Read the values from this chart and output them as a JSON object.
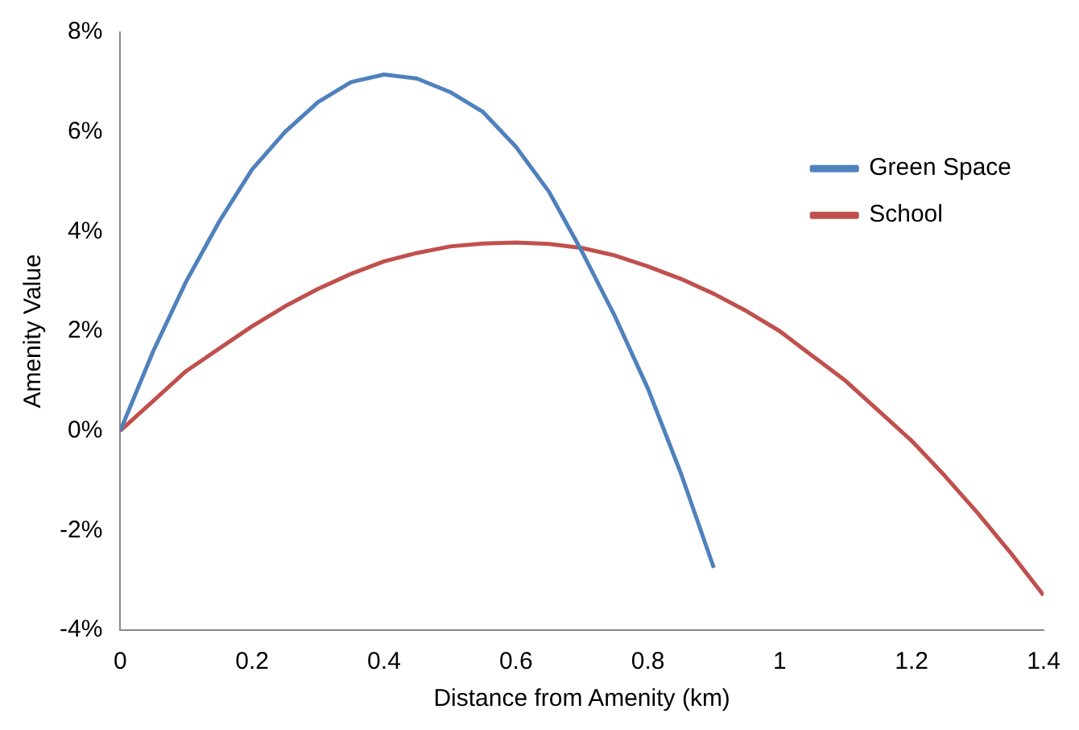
{
  "chart_data": {
    "type": "line",
    "xlabel": "Distance from Amenity (km)",
    "ylabel": "Amenity Value",
    "xlim": [
      0,
      1.4
    ],
    "xticks": [
      0,
      0.2,
      0.4,
      0.6,
      0.8,
      1,
      1.2,
      1.4
    ],
    "ylim": [
      -4,
      8
    ],
    "yticks": [
      {
        "value": -4,
        "label": "-4%"
      },
      {
        "value": -2,
        "label": "-2%"
      },
      {
        "value": 0,
        "label": "0%"
      },
      {
        "value": 2,
        "label": "2%"
      },
      {
        "value": 4,
        "label": "4%"
      },
      {
        "value": 6,
        "label": "6%"
      },
      {
        "value": 8,
        "label": "8%"
      }
    ],
    "grid": false,
    "legend": "top right",
    "marker": "none",
    "line_style": "solid",
    "series": [
      {
        "name": "Green Space",
        "color": "#4f81bd",
        "x": [
          0,
          0.05,
          0.1,
          0.15,
          0.2,
          0.25,
          0.3,
          0.35,
          0.4,
          0.45,
          0.5,
          0.55,
          0.6,
          0.65,
          0.7,
          0.75,
          0.8,
          0.85,
          0.9
        ],
        "values": [
          0,
          1.6,
          3.0,
          4.2,
          5.25,
          6.0,
          6.6,
          7.0,
          7.15,
          7.07,
          6.8,
          6.4,
          5.7,
          4.8,
          3.6,
          2.3,
          0.85,
          -0.85,
          -2.75
        ]
      },
      {
        "name": "School",
        "color": "#c0504d",
        "x": [
          0,
          0.05,
          0.1,
          0.15,
          0.2,
          0.25,
          0.3,
          0.35,
          0.4,
          0.45,
          0.5,
          0.55,
          0.6,
          0.65,
          0.7,
          0.75,
          0.8,
          0.85,
          0.9,
          0.95,
          1,
          1.05,
          1.1,
          1.15,
          1.2,
          1.25,
          1.3,
          1.35,
          1.4
        ],
        "values": [
          0,
          0.6,
          1.2,
          1.65,
          2.1,
          2.5,
          2.85,
          3.15,
          3.4,
          3.57,
          3.7,
          3.76,
          3.78,
          3.75,
          3.67,
          3.52,
          3.3,
          3.05,
          2.75,
          2.4,
          2.0,
          1.5,
          1.0,
          0.4,
          -0.2,
          -0.9,
          -1.65,
          -2.45,
          -3.3
        ]
      }
    ]
  }
}
